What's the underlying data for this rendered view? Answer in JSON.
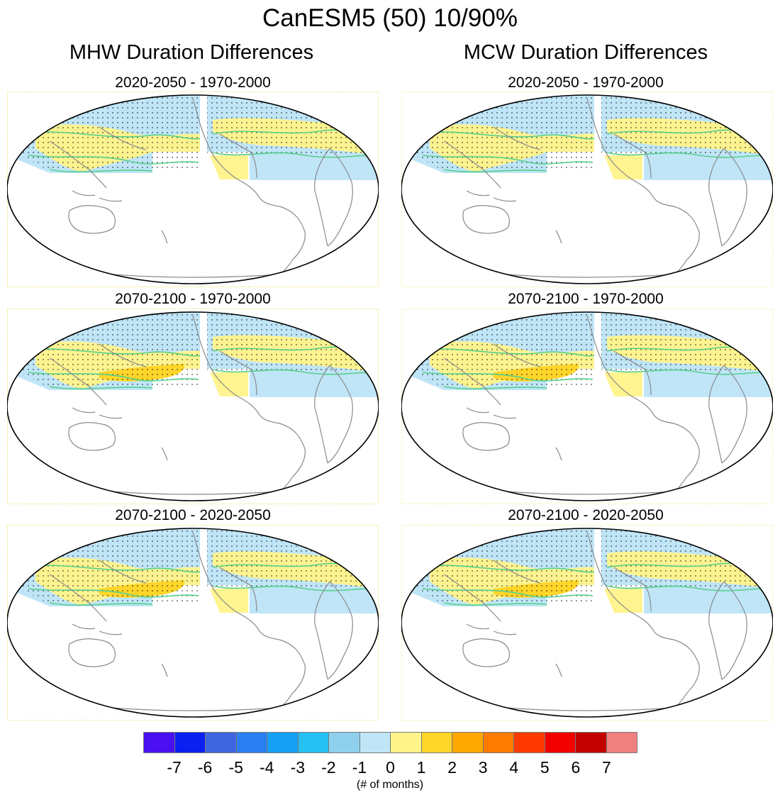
{
  "title": "CanESM5 (50) 10/90%",
  "columns": [
    {
      "title": "MHW Duration Differences",
      "panels": [
        "2020-2050 - 1970-2000",
        "2070-2100 - 1970-2000",
        "2070-2100 - 2020-2050"
      ]
    },
    {
      "title": "MCW Duration Differences",
      "panels": [
        "2020-2050 - 1970-2000",
        "2070-2100 - 1970-2000",
        "2070-2100 - 2020-2050"
      ]
    }
  ],
  "colorbar": {
    "colors": [
      "#4a10f2",
      "#0a1ff0",
      "#3f66e0",
      "#2a7ff0",
      "#159ff5",
      "#27c0f5",
      "#8fcfee",
      "#bfe5f7",
      "#fff38a",
      "#ffd52a",
      "#ffa800",
      "#ff7a00",
      "#ff3a00",
      "#f20000",
      "#c20000",
      "#f08080"
    ],
    "tick_labels": [
      "-7",
      "-6",
      "-5",
      "-4",
      "-3",
      "-2",
      "-1",
      "0",
      "1",
      "2",
      "3",
      "4",
      "5",
      "6",
      "7"
    ],
    "units": "(# of months)"
  },
  "map_colors": {
    "ocean_light_blue": "#bfe5f7",
    "ocean_yellow": "#fff38a",
    "ocean_gold": "#ffd52a",
    "ocean_blue": "#8fcfee",
    "contour_green": "#55d08c",
    "coastline": "#8a8a8a"
  }
}
